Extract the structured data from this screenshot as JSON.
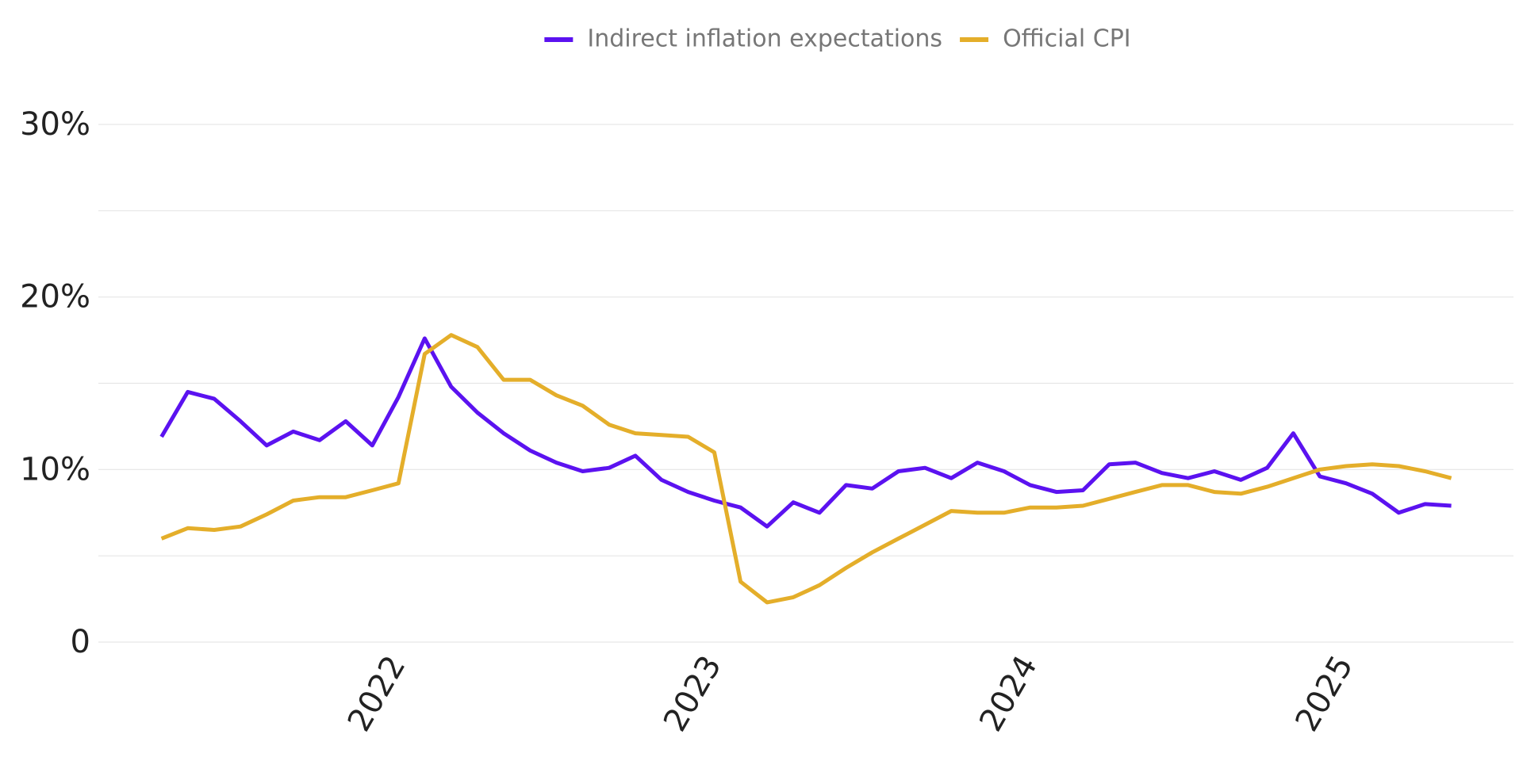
{
  "chart_data": {
    "type": "line",
    "x": [
      2021.25,
      2021.333,
      2021.417,
      2021.5,
      2021.583,
      2021.667,
      2021.75,
      2021.833,
      2021.917,
      2022,
      2022.083,
      2022.167,
      2022.25,
      2022.333,
      2022.417,
      2022.5,
      2022.583,
      2022.667,
      2022.75,
      2022.833,
      2022.917,
      2023,
      2023.083,
      2023.167,
      2023.25,
      2023.333,
      2023.417,
      2023.5,
      2023.583,
      2023.667,
      2023.75,
      2023.833,
      2023.917,
      2024,
      2024.083,
      2024.167,
      2024.25,
      2024.333,
      2024.417,
      2024.5,
      2024.583,
      2024.667,
      2024.75,
      2024.833,
      2024.917,
      2025,
      2025.083,
      2025.167,
      2025.25,
      2025.333
    ],
    "series": [
      {
        "name": "Indirect inflation expectations",
        "color": "#5b12f0",
        "values": [
          11.9,
          14.5,
          14.1,
          12.8,
          11.4,
          12.2,
          11.7,
          12.8,
          11.4,
          14.2,
          17.6,
          14.8,
          13.3,
          12.1,
          11.1,
          10.4,
          9.9,
          10.1,
          10.8,
          9.4,
          8.7,
          8.2,
          7.8,
          6.7,
          8.1,
          7.5,
          9.1,
          8.9,
          9.9,
          10.1,
          9.5,
          10.4,
          9.9,
          9.1,
          8.7,
          8.8,
          10.3,
          10.4,
          9.8,
          9.5,
          9.9,
          9.4,
          10.1,
          12.1,
          9.6,
          9.2,
          8.6,
          7.5,
          8.0,
          7.9
        ]
      },
      {
        "name": "Official CPI",
        "color": "#e4ae2a",
        "values": [
          6.0,
          6.6,
          6.5,
          6.7,
          7.4,
          8.2,
          8.4,
          8.4,
          8.8,
          9.2,
          16.7,
          17.8,
          17.1,
          15.2,
          15.2,
          14.3,
          13.7,
          12.6,
          12.1,
          12.0,
          11.9,
          11.0,
          3.5,
          2.3,
          2.6,
          3.3,
          4.3,
          5.2,
          6.0,
          6.8,
          7.6,
          7.5,
          7.5,
          7.8,
          7.8,
          7.9,
          8.3,
          8.7,
          9.1,
          9.1,
          8.7,
          8.6,
          9.0,
          9.5,
          10.0,
          10.2,
          10.3,
          10.2,
          9.9,
          9.5
        ]
      }
    ],
    "xlim": [
      2021.05,
      2025.53
    ],
    "xticks": [
      2022,
      2023,
      2024,
      2025
    ],
    "ylim": [
      0,
      30
    ],
    "yticks": [
      0,
      {
        "value": 10,
        "label": "10%"
      },
      {
        "value": 20,
        "label": "20%"
      },
      {
        "value": 30,
        "label": "30%"
      }
    ],
    "ygrid": [
      0,
      5,
      10,
      15,
      20,
      25,
      30
    ],
    "grid": true,
    "legend": "top"
  }
}
